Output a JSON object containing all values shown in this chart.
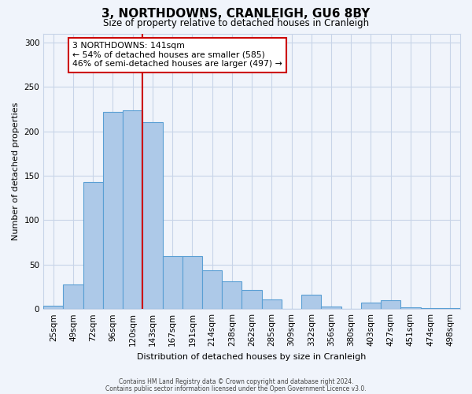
{
  "title": "3, NORTHDOWNS, CRANLEIGH, GU6 8BY",
  "subtitle": "Size of property relative to detached houses in Cranleigh",
  "xlabel": "Distribution of detached houses by size in Cranleigh",
  "ylabel": "Number of detached properties",
  "categories": [
    "25sqm",
    "49sqm",
    "72sqm",
    "96sqm",
    "120sqm",
    "143sqm",
    "167sqm",
    "191sqm",
    "214sqm",
    "238sqm",
    "262sqm",
    "285sqm",
    "309sqm",
    "332sqm",
    "356sqm",
    "380sqm",
    "403sqm",
    "427sqm",
    "451sqm",
    "474sqm",
    "498sqm"
  ],
  "values": [
    4,
    28,
    143,
    222,
    224,
    210,
    60,
    60,
    44,
    31,
    21,
    11,
    0,
    16,
    3,
    0,
    7,
    10,
    2,
    1,
    1
  ],
  "bar_color": "#adc9e8",
  "bar_edge_color": "#5a9fd4",
  "vline_color": "#cc0000",
  "vline_pos": 4.5,
  "ylim": [
    0,
    310
  ],
  "yticks": [
    0,
    50,
    100,
    150,
    200,
    250,
    300
  ],
  "annotation_title": "3 NORTHDOWNS: 141sqm",
  "annotation_line1": "← 54% of detached houses are smaller (585)",
  "annotation_line2": "46% of semi-detached houses are larger (497) →",
  "annotation_box_color": "#ffffff",
  "annotation_box_edge": "#cc0000",
  "footer1": "Contains HM Land Registry data © Crown copyright and database right 2024.",
  "footer2": "Contains public sector information licensed under the Open Government Licence v3.0.",
  "bg_color": "#f0f4fb",
  "grid_color": "#c8d4e8"
}
